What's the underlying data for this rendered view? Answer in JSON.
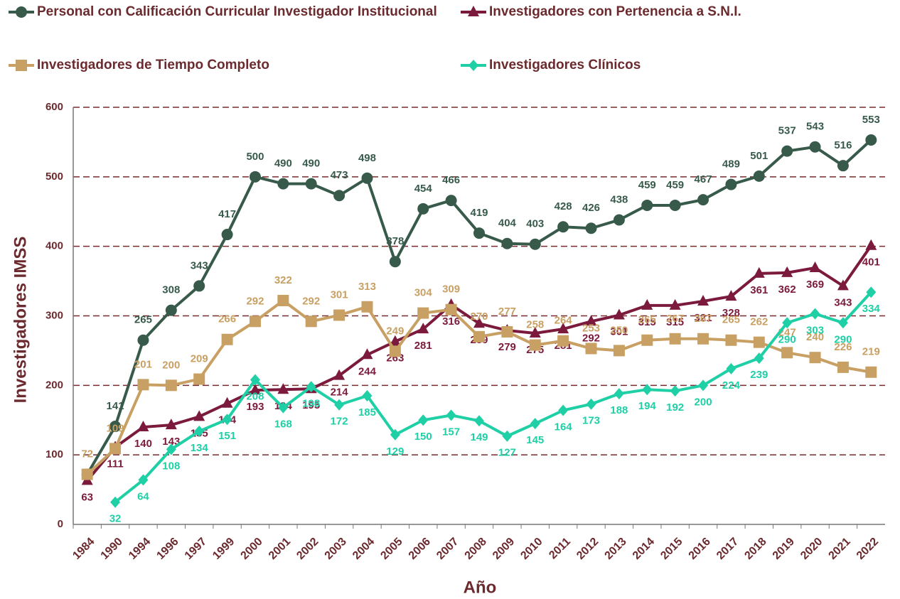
{
  "chart_data": {
    "type": "line",
    "y_label": "Investigadores IMSS",
    "x_label": "Año",
    "categories": [
      "1984",
      "1990",
      "1994",
      "1996",
      "1997",
      "1999",
      "2000",
      "2001",
      "2002",
      "2003",
      "2004",
      "2005",
      "2006",
      "2007",
      "2008",
      "2009",
      "2010",
      "2011",
      "2012",
      "2013",
      "2014",
      "2015",
      "2016",
      "2017",
      "2018",
      "2019",
      "2020",
      "2021",
      "2022"
    ],
    "series": [
      {
        "name": "Personal con Calificación Curricular Investigador Institucional",
        "color": "#375a4b",
        "marker": "circle",
        "values": [
          72,
          141,
          265,
          308,
          343,
          417,
          500,
          490,
          490,
          473,
          498,
          378,
          454,
          466,
          419,
          404,
          403,
          428,
          426,
          438,
          459,
          459,
          467,
          489,
          501,
          537,
          543,
          516,
          553
        ],
        "value_labels": [
          null,
          "141",
          "265",
          "308",
          "343",
          "417",
          "500",
          "490",
          "490",
          "473",
          "498",
          "378",
          "454",
          "466",
          "419",
          "404",
          "403",
          "428",
          "426",
          "438",
          "459",
          "459",
          "467",
          "489",
          "501",
          "537",
          "543",
          "516",
          "553"
        ]
      },
      {
        "name": "Investigadores con Pertenencia a S.N.I.",
        "color": "#7b1a3c",
        "marker": "triangle",
        "values": [
          63,
          111,
          140,
          143,
          155,
          174,
          193,
          194,
          195,
          214,
          244,
          263,
          281,
          316,
          289,
          279,
          275,
          281,
          292,
          301,
          315,
          315,
          321,
          328,
          361,
          362,
          369,
          343,
          401
        ]
      },
      {
        "name": "Investigadores de Tiempo Completo",
        "color": "#c9a063",
        "marker": "square",
        "values": [
          72,
          109,
          201,
          200,
          209,
          266,
          292,
          322,
          292,
          301,
          313,
          249,
          304,
          309,
          270,
          277,
          258,
          264,
          253,
          250,
          265,
          267,
          267,
          265,
          262,
          247,
          240,
          226,
          219
        ]
      },
      {
        "name": "Investigadores Clínicos",
        "color": "#1fcfa6",
        "marker": "diamond",
        "values": [
          null,
          32,
          64,
          108,
          134,
          151,
          208,
          168,
          198,
          172,
          185,
          129,
          150,
          157,
          149,
          127,
          145,
          164,
          173,
          188,
          194,
          192,
          200,
          224,
          239,
          290,
          303,
          290,
          334
        ]
      }
    ],
    "ylim": [
      0,
      600
    ],
    "yticks": [
      0,
      100,
      200,
      300,
      400,
      500,
      600
    ],
    "grid": true
  }
}
